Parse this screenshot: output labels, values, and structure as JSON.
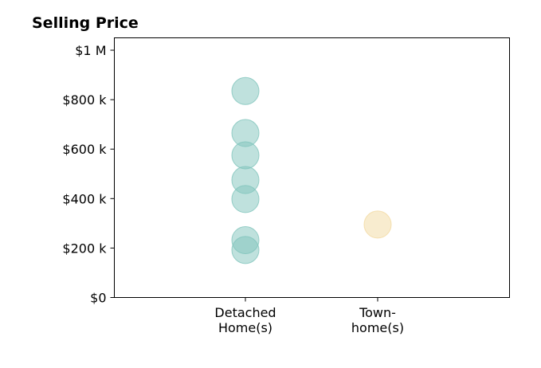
{
  "chart_data": {
    "type": "scatter",
    "title": "Selling Price",
    "xlabel": "",
    "ylabel": "",
    "categories": [
      [
        "Detached",
        "Home(s)"
      ],
      [
        "Town-",
        "home(s)"
      ]
    ],
    "ylim": [
      0,
      1050000
    ],
    "yticks": [
      {
        "value": 0,
        "label": "$0"
      },
      {
        "value": 200000,
        "label": "$200 k"
      },
      {
        "value": 400000,
        "label": "$400 k"
      },
      {
        "value": 600000,
        "label": "$600 k"
      },
      {
        "value": 800000,
        "label": "$800 k"
      },
      {
        "value": 1000000,
        "label": "$1 M"
      }
    ],
    "grid": false,
    "series": [
      {
        "category_index": 0,
        "color": "#7fc4bc",
        "values": [
          835000,
          665000,
          575000,
          475000,
          398000,
          232000,
          192000
        ]
      },
      {
        "category_index": 1,
        "color": "#f2d9a0",
        "values": [
          295000
        ]
      }
    ]
  }
}
